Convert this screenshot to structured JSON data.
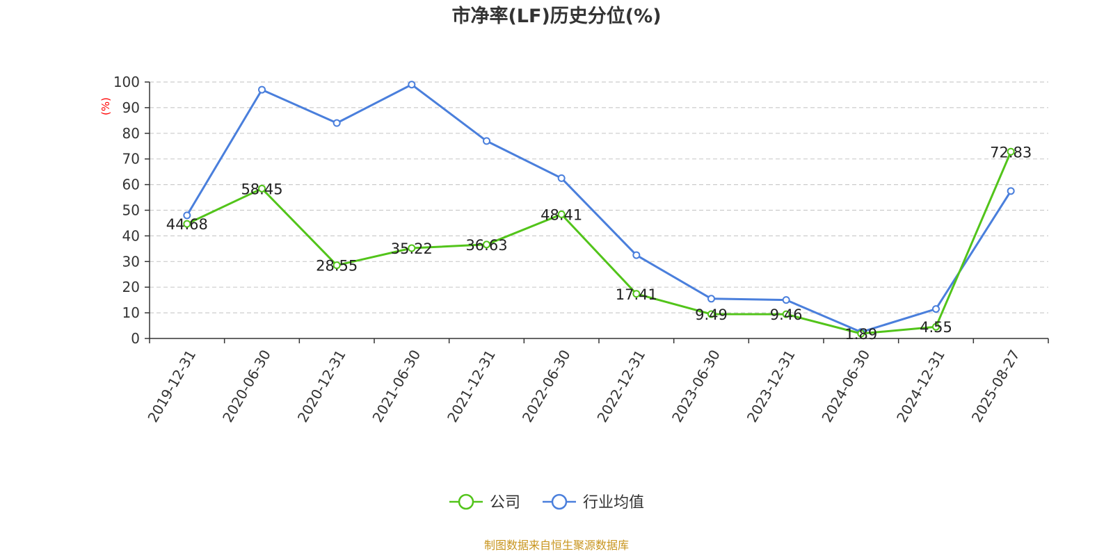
{
  "chart_data": {
    "type": "line",
    "title": "市净率(LF)历史分位(%)",
    "ylabel": "(%)",
    "ylim": [
      0,
      100
    ],
    "yticks": [
      0,
      10,
      20,
      30,
      40,
      50,
      60,
      70,
      80,
      90,
      100
    ],
    "categories": [
      "2019-12-31",
      "2020-06-30",
      "2020-12-31",
      "2021-06-30",
      "2021-12-31",
      "2022-06-30",
      "2022-12-31",
      "2023-06-30",
      "2023-12-31",
      "2024-06-30",
      "2024-12-31",
      "2025-08-27"
    ],
    "grid": true,
    "legend_position": "bottom-center",
    "series": [
      {
        "name": "公司",
        "color": "#52c41a",
        "values": [
          44.68,
          58.45,
          28.55,
          35.22,
          36.63,
          48.41,
          17.41,
          9.49,
          9.46,
          1.89,
          4.55,
          72.83
        ],
        "labels": [
          "44.68",
          "58.45",
          "28.55",
          "35.22",
          "36.63",
          "48.41",
          "17.41",
          "9.49",
          "9.46",
          "1.89",
          "4.55",
          "72.83"
        ]
      },
      {
        "name": "行业均值",
        "color": "#4a7fdc",
        "values": [
          48,
          97,
          84,
          99,
          77,
          62.5,
          32.5,
          15.5,
          15,
          2.5,
          11.5,
          57.5
        ]
      }
    ]
  },
  "source": {
    "text": "制图数据来自恒生聚源数据库",
    "color": "#c8951e"
  },
  "colors": {
    "axis": "#333333",
    "grid": "#cccccc",
    "ylabel": "#ff0000"
  }
}
